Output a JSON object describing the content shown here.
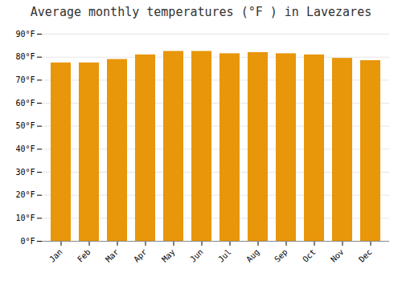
{
  "chart_data": {
    "type": "bar",
    "title": "Average monthly temperatures (°F ) in Lavezares",
    "categories": [
      "Jan",
      "Feb",
      "Mar",
      "Apr",
      "May",
      "Jun",
      "Jul",
      "Aug",
      "Sep",
      "Oct",
      "Nov",
      "Dec"
    ],
    "values": [
      77.5,
      77.5,
      79.0,
      81.0,
      82.5,
      82.5,
      81.5,
      82.0,
      81.5,
      81.0,
      79.5,
      78.5
    ],
    "color": "#E8960A",
    "ylim": [
      0,
      90
    ],
    "yticks": [
      {
        "value": 0,
        "label": "0°F"
      },
      {
        "value": 10,
        "label": "10°F"
      },
      {
        "value": 20,
        "label": "20°F"
      },
      {
        "value": 30,
        "label": "30°F"
      },
      {
        "value": 40,
        "label": "40°F"
      },
      {
        "value": 50,
        "label": "50°F"
      },
      {
        "value": 60,
        "label": "60°F"
      },
      {
        "value": 70,
        "label": "70°F"
      },
      {
        "value": 80,
        "label": "80°F"
      },
      {
        "value": 90,
        "label": "90°F"
      }
    ],
    "grid": true
  }
}
